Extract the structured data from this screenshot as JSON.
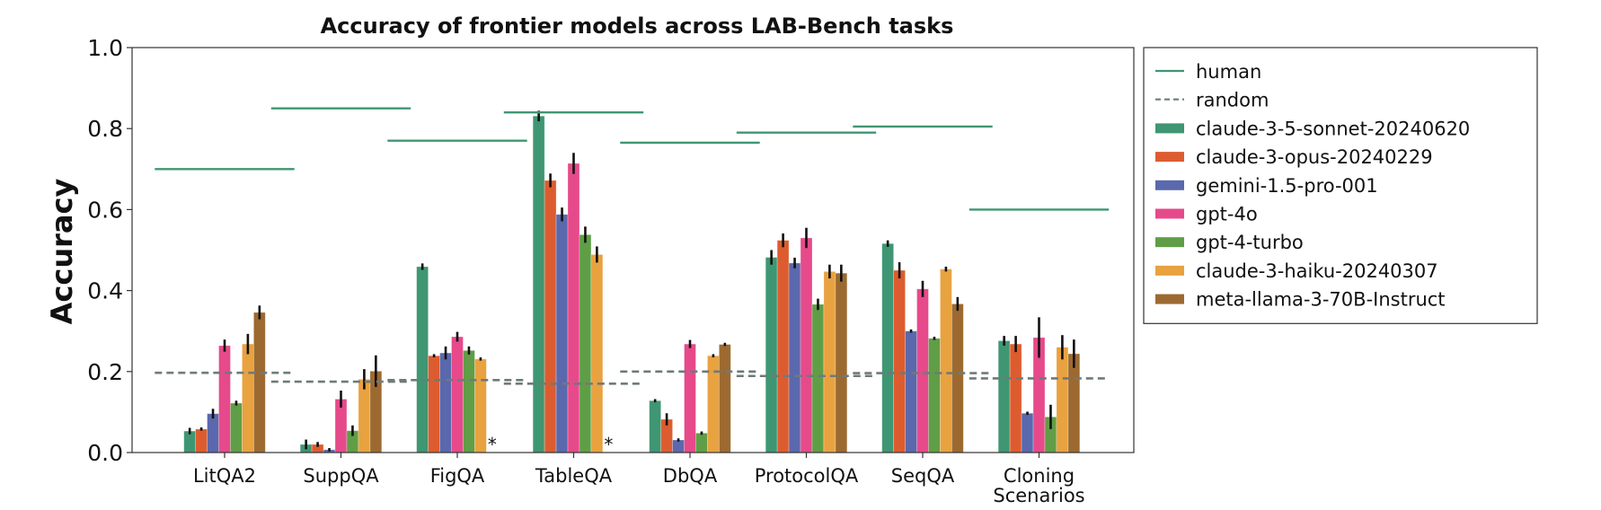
{
  "chart_data": {
    "type": "bar",
    "title": "Accuracy of frontier models across LAB-Bench tasks",
    "xlabel": "",
    "ylabel": "Accuracy",
    "ylim": [
      0,
      1.0
    ],
    "yticks": [
      "0.0",
      "0.2",
      "0.4",
      "0.6",
      "0.8",
      "1.0"
    ],
    "ytick_values": [
      0.0,
      0.2,
      0.4,
      0.6,
      0.8,
      1.0
    ],
    "grid": false,
    "legend_position": "outside-right-top",
    "categories": [
      "LitQA2",
      "SuppQA",
      "FigQA",
      "TableQA",
      "DbQA",
      "ProtocolQA",
      "SeqQA",
      "Cloning Scenarios"
    ],
    "category_label_lines": [
      [
        "LitQA2"
      ],
      [
        "SuppQA"
      ],
      [
        "FigQA"
      ],
      [
        "TableQA"
      ],
      [
        "DbQA"
      ],
      [
        "ProtocolQA"
      ],
      [
        "SeqQA"
      ],
      [
        "Cloning",
        "Scenarios"
      ]
    ],
    "reference_lines": [
      {
        "name": "human",
        "style": "solid",
        "color": "#3f9672",
        "values": [
          0.7,
          0.85,
          0.77,
          0.84,
          0.765,
          0.79,
          0.805,
          0.6
        ]
      },
      {
        "name": "random",
        "style": "dashed",
        "color": "#6f7a7a",
        "values": [
          0.197,
          0.175,
          0.179,
          0.17,
          0.2,
          0.189,
          0.196,
          0.183
        ]
      }
    ],
    "series": [
      {
        "name": "claude-3-5-sonnet-20240620",
        "color": "#3f9672",
        "values": [
          0.053,
          0.02,
          0.459,
          0.831,
          0.128,
          0.482,
          0.516,
          0.276
        ],
        "errors": [
          0.008,
          0.012,
          0.008,
          0.013,
          0.003,
          0.018,
          0.008,
          0.012
        ]
      },
      {
        "name": "claude-3-opus-20240229",
        "color": "#dd5c2f",
        "values": [
          0.058,
          0.02,
          0.239,
          0.672,
          0.082,
          0.524,
          0.45,
          0.268
        ],
        "errors": [
          0.004,
          0.006,
          0.004,
          0.017,
          0.015,
          0.017,
          0.02,
          0.02
        ]
      },
      {
        "name": "gemini-1.5-pro-001",
        "color": "#5a68ad",
        "values": [
          0.096,
          0.007,
          0.246,
          0.588,
          0.031,
          0.468,
          0.3,
          0.097
        ],
        "errors": [
          0.012,
          0.0,
          0.016,
          0.017,
          0.003,
          0.013,
          0.004,
          0.0
        ]
      },
      {
        "name": "gpt-4o",
        "color": "#e64a8a",
        "values": [
          0.264,
          0.132,
          0.286,
          0.714,
          0.268,
          0.53,
          0.404,
          0.284
        ],
        "errors": [
          0.015,
          0.021,
          0.012,
          0.026,
          0.01,
          0.025,
          0.02,
          0.05
        ]
      },
      {
        "name": "gpt-4-turbo",
        "color": "#5f9e46",
        "values": [
          0.122,
          0.054,
          0.252,
          0.538,
          0.048,
          0.366,
          0.282,
          0.088
        ],
        "errors": [
          0.006,
          0.013,
          0.01,
          0.02,
          0.003,
          0.014,
          0.003,
          0.03
        ]
      },
      {
        "name": "claude-3-haiku-20240307",
        "color": "#e8a240",
        "values": [
          0.268,
          0.181,
          0.231,
          0.489,
          0.239,
          0.447,
          0.453,
          0.26
        ],
        "errors": [
          0.025,
          0.025,
          0.002,
          0.02,
          0.003,
          0.017,
          0.006,
          0.03
        ]
      },
      {
        "name": "meta-llama-3-70B-Instruct",
        "color": "#9c6a30",
        "values": [
          0.346,
          0.201,
          null,
          null,
          0.267,
          0.443,
          0.367,
          0.244
        ],
        "errors": [
          0.017,
          0.039,
          null,
          null,
          0.003,
          0.021,
          0.017,
          0.035
        ]
      }
    ],
    "missing_marker": "*",
    "annotations": [
      {
        "text": "*",
        "category": "FigQA",
        "series": "meta-llama-3-70B-Instruct"
      },
      {
        "text": "*",
        "category": "TableQA",
        "series": "meta-llama-3-70B-Instruct"
      }
    ]
  }
}
